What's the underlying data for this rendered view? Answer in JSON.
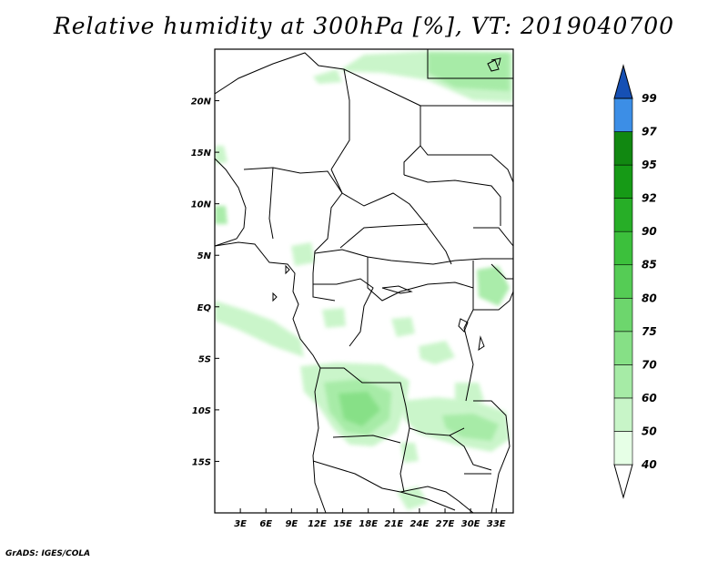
{
  "title": "Relative humidity at 300hPa [%], VT: 2019040700",
  "credit": "GrADS: IGES/COLA",
  "map": {
    "region": "Central Africa",
    "lon_range": [
      0,
      35
    ],
    "lat_range": [
      -20,
      25
    ],
    "lon_ticks": [
      {
        "value": 3,
        "label": "3E"
      },
      {
        "value": 6,
        "label": "6E"
      },
      {
        "value": 9,
        "label": "9E"
      },
      {
        "value": 12,
        "label": "12E"
      },
      {
        "value": 15,
        "label": "15E"
      },
      {
        "value": 18,
        "label": "18E"
      },
      {
        "value": 21,
        "label": "21E"
      },
      {
        "value": 24,
        "label": "24E"
      },
      {
        "value": 27,
        "label": "27E"
      },
      {
        "value": 30,
        "label": "30E"
      },
      {
        "value": 33,
        "label": "33E"
      }
    ],
    "lat_ticks": [
      {
        "value": 20,
        "label": "20N"
      },
      {
        "value": 15,
        "label": "15N"
      },
      {
        "value": 10,
        "label": "10N"
      },
      {
        "value": 5,
        "label": "5N"
      },
      {
        "value": 0,
        "label": "EQ"
      },
      {
        "value": -5,
        "label": "5S"
      },
      {
        "value": -10,
        "label": "10S"
      },
      {
        "value": -15,
        "label": "15S"
      }
    ]
  },
  "colorbar": {
    "levels": [
      "40",
      "50",
      "60",
      "70",
      "75",
      "80",
      "85",
      "90",
      "92",
      "95",
      "97",
      "99"
    ],
    "colors": [
      "#e6ffe6",
      "#c8f5c8",
      "#a6eba6",
      "#86e086",
      "#6dd66d",
      "#55cc55",
      "#3cc03c",
      "#27ae27",
      "#169a16",
      "#118811",
      "#3c8ee6",
      "#1e6ed2",
      "#1650b4"
    ]
  },
  "humidity_fields": {
    "colors": [
      "#c8f5c8",
      "#a6eba6",
      "#86e086"
    ]
  }
}
